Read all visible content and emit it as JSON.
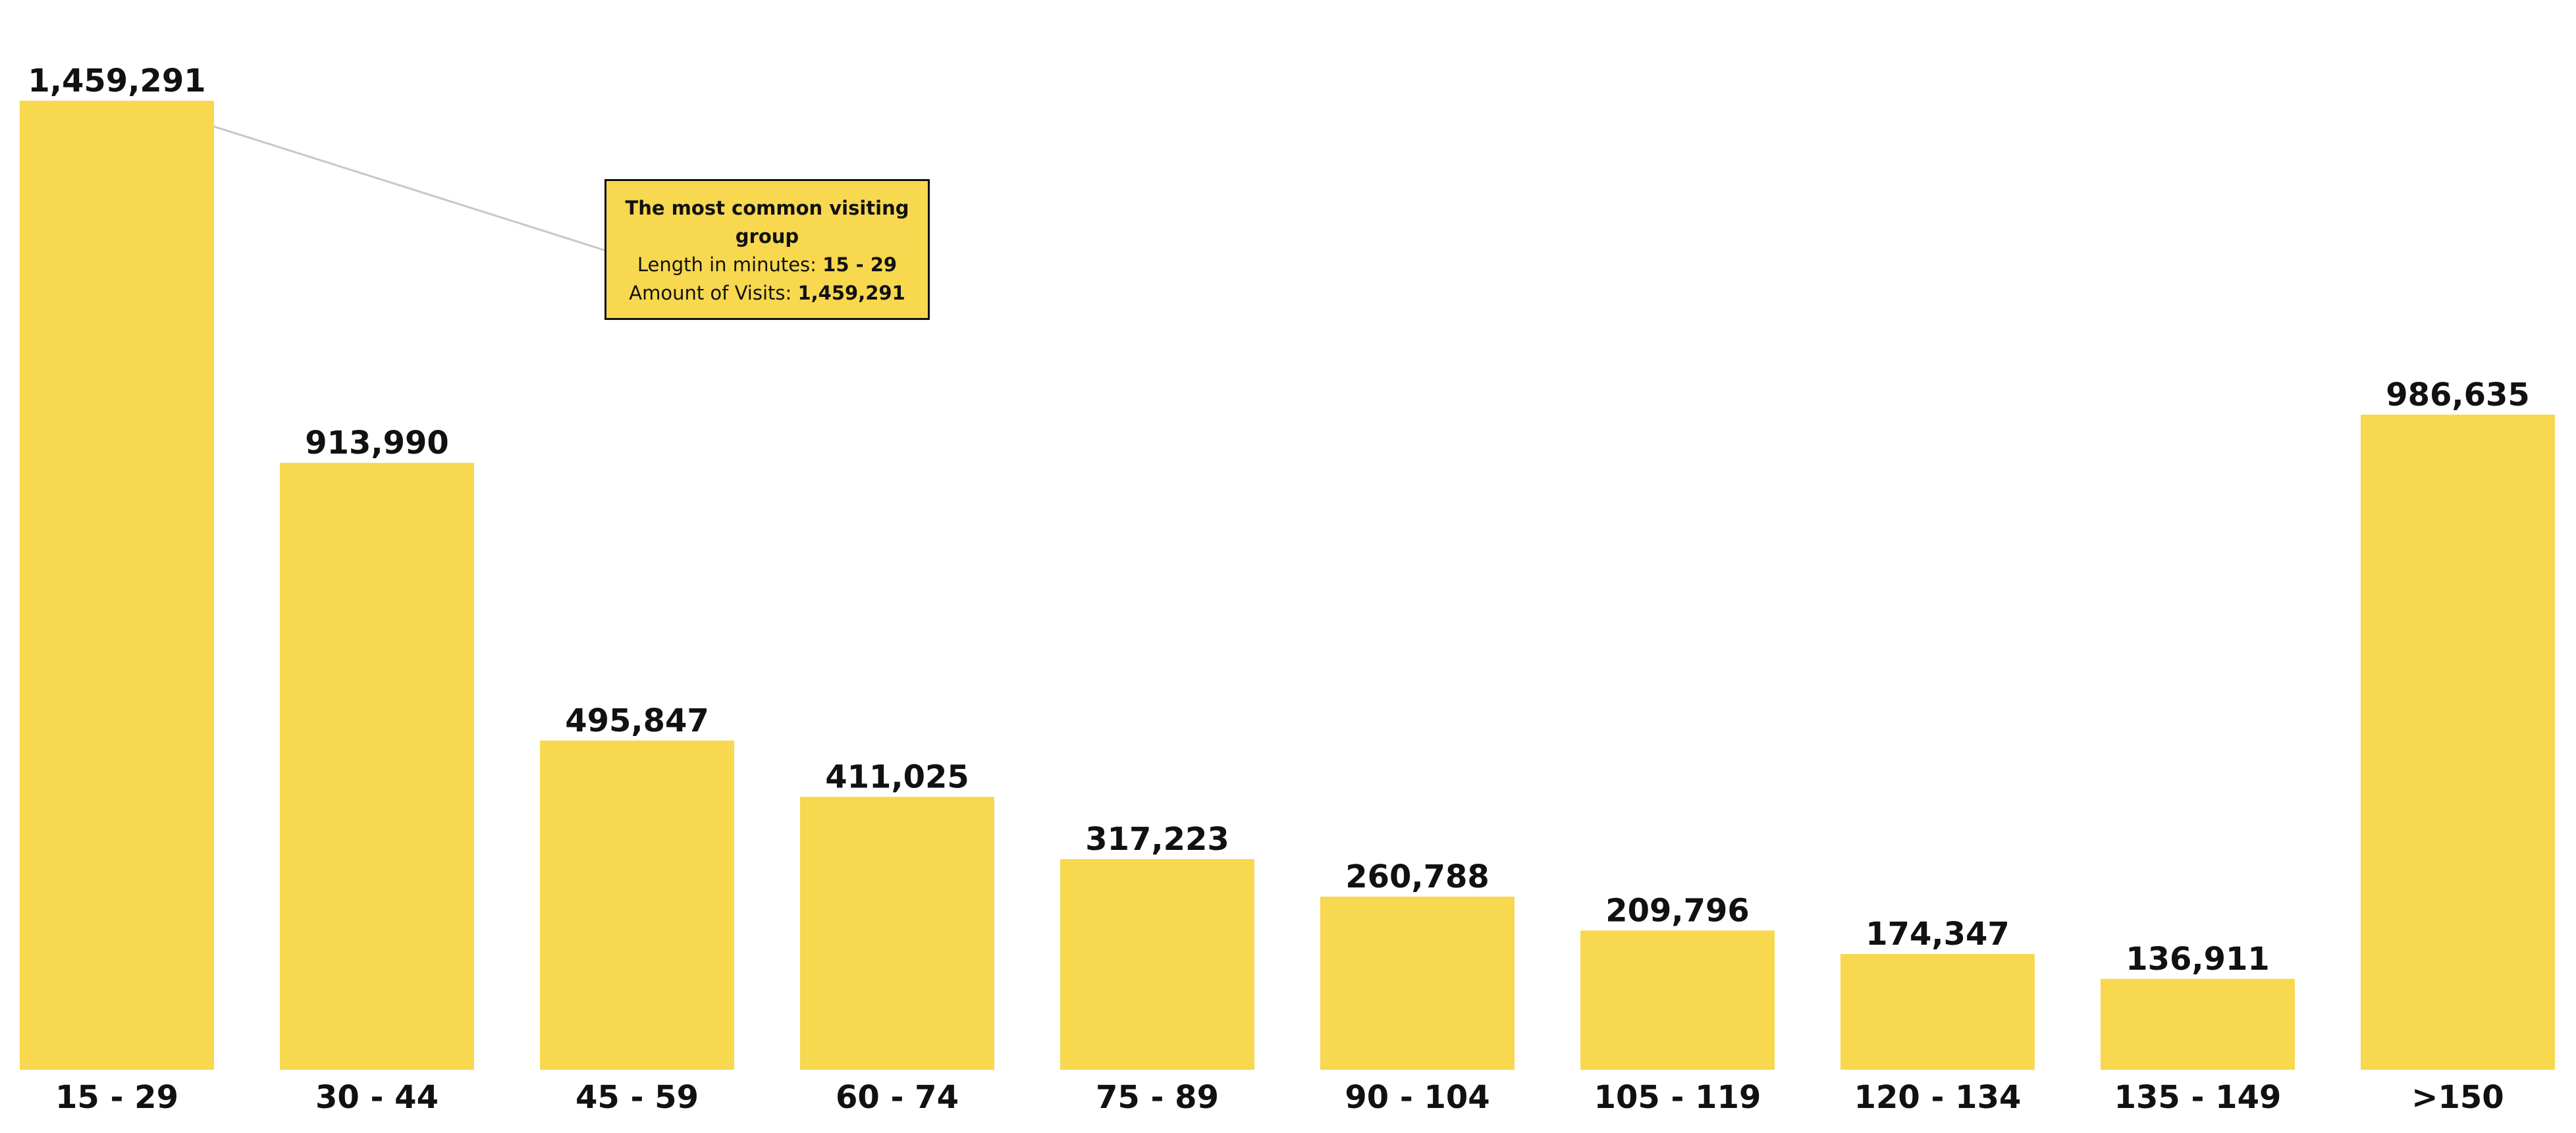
{
  "chart_data": {
    "type": "bar",
    "categories": [
      "15 - 29",
      "30 - 44",
      "45 - 59",
      "60 - 74",
      "75 - 89",
      "90 - 104",
      "105 - 119",
      "120 - 134",
      "135 - 149",
      ">150"
    ],
    "values": [
      1459291,
      913990,
      495847,
      411025,
      317223,
      260788,
      209796,
      174347,
      136911,
      986635
    ],
    "value_labels": [
      "1,459,291",
      "913,990",
      "495,847",
      "411,025",
      "317,223",
      "260,788",
      "209,796",
      "174,347",
      "136,911",
      "986,635"
    ],
    "ylim": [
      0,
      1459291
    ],
    "grid": false,
    "legend": "none",
    "bar_color": "#f7d84f",
    "annotation": {
      "title": "The most common visiting group",
      "length_label": "Length in minutes:",
      "length_value": "15 - 29",
      "visits_label": "Amount of Visits:",
      "visits_value": "1,459,291",
      "target_index": 0
    }
  }
}
